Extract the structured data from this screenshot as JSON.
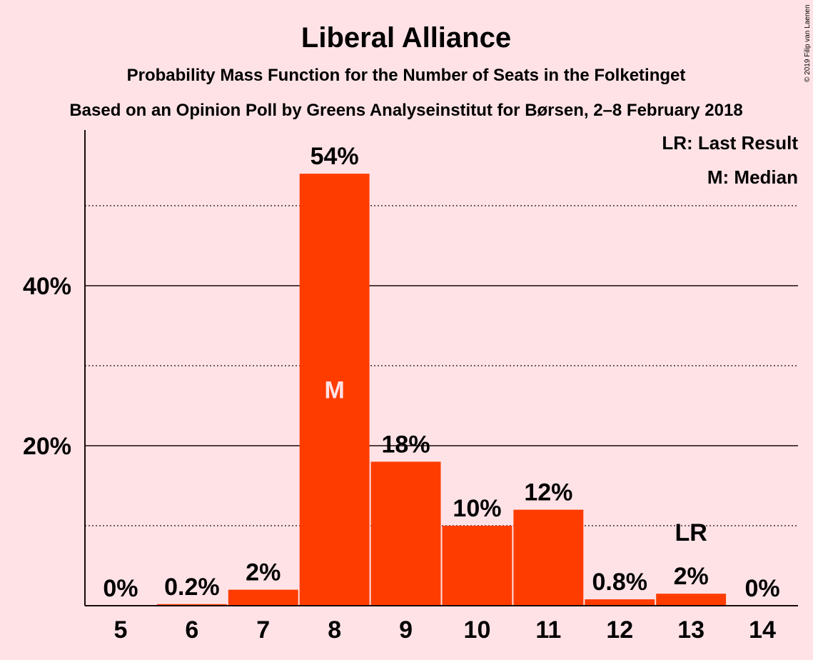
{
  "chart_data": {
    "type": "bar",
    "title": "Liberal Alliance",
    "subtitle": "Probability Mass Function for the Number of Seats in the Folketinget",
    "subtitle2": "Based on an Opinion Poll by Greens Analyseinstitut for Børsen, 2–8 February 2018",
    "copyright": "© 2019 Filip van Laenen",
    "categories": [
      "5",
      "6",
      "7",
      "8",
      "9",
      "10",
      "11",
      "12",
      "13",
      "14"
    ],
    "values": [
      0,
      0.2,
      2,
      54,
      18,
      10,
      12,
      0.8,
      1.5,
      0
    ],
    "value_labels": [
      "0%",
      "0.2%",
      "2%",
      "54%",
      "18%",
      "10%",
      "12%",
      "0.8%",
      "2%",
      "0%"
    ],
    "ylim": [
      0,
      59
    ],
    "yticks": [
      20,
      40
    ],
    "ytick_labels": [
      "20%",
      "40%"
    ],
    "minor_gridlines": [
      10,
      30,
      50
    ],
    "median_category": "8",
    "median_marker": "M",
    "last_result_category": "13",
    "last_result_marker": "LR",
    "legend": [
      "LR: Last Result",
      "M: Median"
    ],
    "legend_position": "top-right",
    "bar_color": "#ff3c00"
  }
}
